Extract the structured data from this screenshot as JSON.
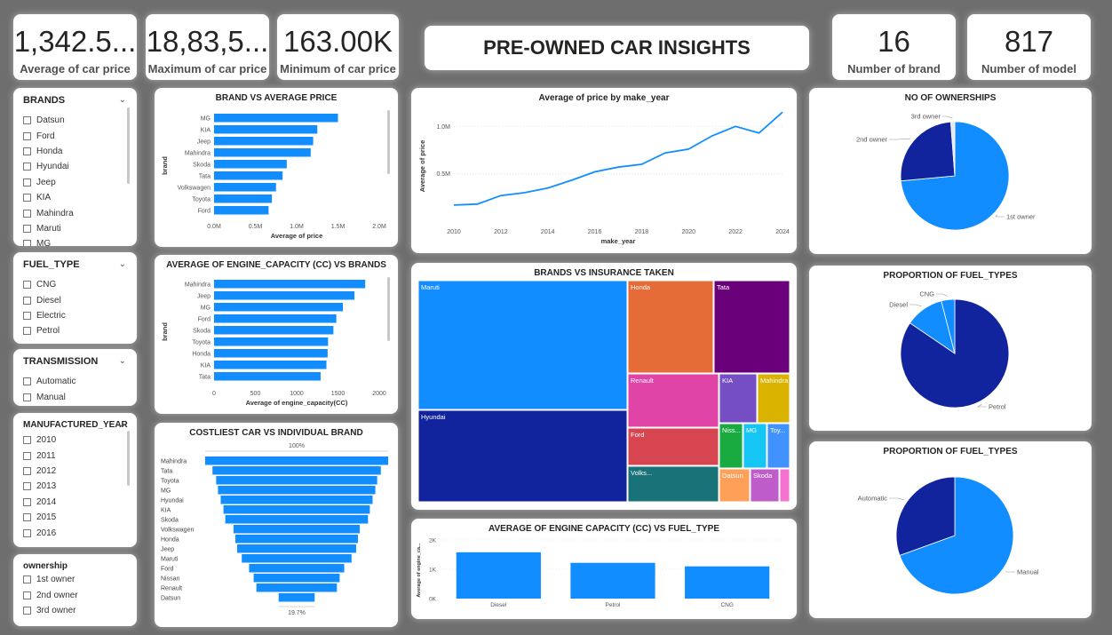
{
  "kpis": {
    "avg_price": {
      "value": "1,342.5...",
      "label": "Average of car price"
    },
    "max_price": {
      "value": "18,83,5...",
      "label": "Maximum of car price"
    },
    "min_price": {
      "value": "163.00K",
      "label": "Minimum of car price"
    },
    "num_brand": {
      "value": "16",
      "label": "Number of brand"
    },
    "num_model": {
      "value": "817",
      "label": "Number of model"
    }
  },
  "page_title": "PRE-OWNED CAR INSIGHTS",
  "slicers": {
    "brands": {
      "title": "BRANDS",
      "items": [
        "Datsun",
        "Ford",
        "Honda",
        "Hyundai",
        "Jeep",
        "KIA",
        "Mahindra",
        "Maruti",
        "MG"
      ]
    },
    "fuel_type": {
      "title": "FUEL_TYPE",
      "items": [
        "CNG",
        "Diesel",
        "Electric",
        "Petrol"
      ]
    },
    "transmission": {
      "title": "TRANSMISSION",
      "items": [
        "Automatic",
        "Manual"
      ]
    },
    "manufactured_year": {
      "title": "MANUFACTURED_YEAR",
      "items": [
        "2010",
        "2011",
        "2012",
        "2013",
        "2014",
        "2015",
        "2016"
      ]
    },
    "ownership": {
      "title": "ownership",
      "items": [
        "1st owner",
        "2nd owner",
        "3rd owner"
      ]
    }
  },
  "colors": {
    "primary": "#118dff",
    "dark": "#12239e",
    "bg": "#6e6e6e"
  },
  "chart_data": [
    {
      "id": "brand_avg_price",
      "type": "bar",
      "orientation": "horizontal",
      "title": "BRAND VS AVERAGE PRICE",
      "xlabel": "Average of price",
      "ylabel": "brand",
      "categories": [
        "MG",
        "KIA",
        "Jeep",
        "Mahindra",
        "Skoda",
        "Tata",
        "Volkswagen",
        "Toyota",
        "Ford"
      ],
      "values": [
        1.5,
        1.25,
        1.2,
        1.17,
        0.88,
        0.83,
        0.75,
        0.7,
        0.66
      ],
      "xlim": [
        0,
        2.0
      ],
      "xticks": [
        "0.0M",
        "0.5M",
        "1.0M",
        "1.5M",
        "2.0M"
      ]
    },
    {
      "id": "engine_brand",
      "type": "bar",
      "orientation": "horizontal",
      "title": "AVERAGE OF ENGINE_CAPACITY (CC) VS BRANDS",
      "xlabel": "Average of engine_capacity(CC)",
      "ylabel": "brand",
      "categories": [
        "Mahindra",
        "Jeep",
        "MG",
        "Ford",
        "Skoda",
        "Toyota",
        "Honda",
        "KIA",
        "Tata"
      ],
      "values": [
        1830,
        1700,
        1560,
        1480,
        1445,
        1380,
        1375,
        1360,
        1290
      ],
      "xlim": [
        0,
        2000
      ],
      "xticks": [
        "0",
        "500",
        "1000",
        "1500",
        "2000"
      ]
    },
    {
      "id": "funnel",
      "type": "bar",
      "subtype": "funnel",
      "title": "COSTLIEST CAR VS INDIVIDUAL BRAND",
      "categories": [
        "Mahindra",
        "Tata",
        "Toyota",
        "MG",
        "Hyundai",
        "KIA",
        "Skoda",
        "Volkswagen",
        "Honda",
        "Jeep",
        "Maruti",
        "Ford",
        "Nissan",
        "Renault",
        "Datsun"
      ],
      "values": [
        100,
        92,
        88,
        86,
        83,
        80,
        78,
        69,
        67,
        65,
        60,
        52,
        47,
        44,
        19.7
      ],
      "top_label": "100%",
      "bottom_label": "19.7%"
    },
    {
      "id": "price_year",
      "type": "line",
      "title": "Average of price by make_year",
      "xlabel": "make_year",
      "ylabel": "Average of price",
      "x": [
        2010,
        2011,
        2012,
        2013,
        2014,
        2015,
        2016,
        2017,
        2018,
        2019,
        2020,
        2021,
        2022,
        2023,
        2024
      ],
      "values": [
        0.17,
        0.18,
        0.27,
        0.3,
        0.35,
        0.43,
        0.52,
        0.57,
        0.6,
        0.72,
        0.76,
        0.9,
        1.0,
        0.93,
        1.15
      ],
      "ylim": [
        0,
        1.2
      ],
      "yticks": [
        "0.5M",
        "1.0M"
      ],
      "xticks": [
        "2010",
        "2012",
        "2014",
        "2016",
        "2018",
        "2020",
        "2022",
        "2024"
      ]
    },
    {
      "id": "insurance_treemap",
      "type": "treemap",
      "title": "BRANDS VS INSURANCE TAKEN",
      "categories": [
        "Maruti",
        "Hyundai",
        "Honda",
        "Tata",
        "Renault",
        "KIA",
        "Mahindra",
        "Ford",
        "Volks...",
        "Niss...",
        "MG",
        "Toy...",
        "Datsun",
        "Skoda",
        ""
      ],
      "colors": [
        "#118dff",
        "#12239e",
        "#e66c37",
        "#6b007b",
        "#e044a7",
        "#744ec2",
        "#d9b300",
        "#d64550",
        "#197278",
        "#1aab40",
        "#15c6f4",
        "#4092ff",
        "#ffa058",
        "#be5dc9",
        "#f472d0"
      ]
    },
    {
      "id": "engine_fuel",
      "type": "bar",
      "title": "AVERAGE OF ENGINE CAPACITY (CC) VS FUEL_TYPE",
      "ylabel": "Average of engine_ca...",
      "categories": [
        "Diesel",
        "Petrol",
        "CNG"
      ],
      "values": [
        1580,
        1220,
        1100
      ],
      "ylim": [
        0,
        2000
      ],
      "yticks": [
        "0K",
        "1K",
        "2K"
      ]
    },
    {
      "id": "ownerships",
      "type": "pie",
      "title": "NO OF OWNERSHIPS",
      "categories": [
        "1st owner",
        "2nd owner",
        "3rd owner"
      ],
      "values": [
        73.5,
        25.3,
        1.2
      ],
      "colors": [
        "#118dff",
        "#12239e",
        "#e8e8e8"
      ]
    },
    {
      "id": "fuel_types",
      "type": "pie",
      "title": "PROPORTION OF FUEL_TYPES",
      "categories": [
        "Petrol",
        "Diesel",
        "CNG"
      ],
      "values": [
        84.5,
        11.5,
        4.0
      ],
      "colors": [
        "#12239e",
        "#118dff",
        "#118dff"
      ]
    },
    {
      "id": "transmission_pie",
      "type": "pie",
      "title": "PROPORTION OF FUEL_TYPES",
      "categories": [
        "Manual",
        "Automatic"
      ],
      "values": [
        69.5,
        30.5
      ],
      "colors": [
        "#118dff",
        "#12239e"
      ]
    }
  ]
}
